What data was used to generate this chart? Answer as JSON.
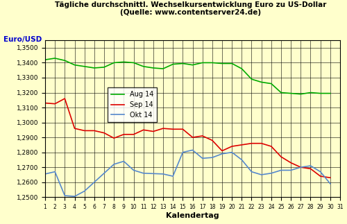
{
  "title": "Tägliche durchschnittl. Wechselkursentwicklung Euro zu US-Dollar\n(Quelle: www.contentserver24.de)",
  "xlabel": "Kalendertag",
  "ylabel": "Euro/USD",
  "background_color": "#FFFFCC",
  "ylim": [
    1.25,
    1.355
  ],
  "yticks": [
    1.25,
    1.26,
    1.27,
    1.28,
    1.29,
    1.3,
    1.31,
    1.32,
    1.33,
    1.34,
    1.35
  ],
  "ytick_labels": [
    "1,2500",
    "1,2600",
    "1,2700",
    "1,2800",
    "1,2900",
    "1,3000",
    "1,3100",
    "1,3200",
    "1,3300",
    "1,3400",
    "1,3500"
  ],
  "series": {
    "Aug 14": {
      "color": "#00AA00",
      "days": [
        1,
        2,
        3,
        4,
        5,
        6,
        7,
        8,
        9,
        10,
        11,
        12,
        13,
        14,
        15,
        16,
        17,
        18,
        19,
        20,
        21,
        22,
        23,
        24,
        25,
        26,
        27,
        28,
        29,
        30
      ],
      "values": [
        1.342,
        1.343,
        1.3415,
        1.3385,
        1.3375,
        1.3365,
        1.337,
        1.34,
        1.3405,
        1.34,
        1.3375,
        1.3365,
        1.336,
        1.339,
        1.3395,
        1.3385,
        1.34,
        1.34,
        1.3395,
        1.3395,
        1.336,
        1.329,
        1.327,
        1.326,
        1.32,
        1.3195,
        1.319,
        1.32,
        1.3195,
        1.3195
      ]
    },
    "Sep 14": {
      "color": "#DD0000",
      "days": [
        1,
        2,
        3,
        4,
        5,
        6,
        7,
        8,
        9,
        10,
        11,
        12,
        13,
        14,
        15,
        16,
        17,
        18,
        19,
        20,
        21,
        22,
        23,
        24,
        25,
        26,
        27,
        28,
        29,
        30
      ],
      "values": [
        1.313,
        1.3125,
        1.316,
        1.296,
        1.2945,
        1.2945,
        1.293,
        1.2895,
        1.292,
        1.292,
        1.295,
        1.294,
        1.296,
        1.2955,
        1.2955,
        1.29,
        1.291,
        1.288,
        1.281,
        1.284,
        1.285,
        1.286,
        1.286,
        1.284,
        1.277,
        1.273,
        1.27,
        1.269,
        1.264,
        1.263
      ]
    },
    "Okt 14": {
      "color": "#5588CC",
      "days": [
        1,
        2,
        3,
        4,
        5,
        8,
        9,
        10,
        11,
        13,
        14,
        15,
        16,
        17,
        18,
        19,
        20,
        21,
        22,
        23,
        24,
        25,
        26,
        27,
        28,
        29,
        30
      ],
      "values": [
        1.2655,
        1.267,
        1.251,
        1.2505,
        1.254,
        1.272,
        1.274,
        1.268,
        1.266,
        1.2655,
        1.264,
        1.28,
        1.2815,
        1.276,
        1.2765,
        1.279,
        1.28,
        1.275,
        1.267,
        1.265,
        1.266,
        1.268,
        1.268,
        1.27,
        1.271,
        1.267,
        1.259
      ]
    }
  },
  "legend_order": [
    "Aug 14",
    "Sep 14",
    "Okt 14"
  ]
}
